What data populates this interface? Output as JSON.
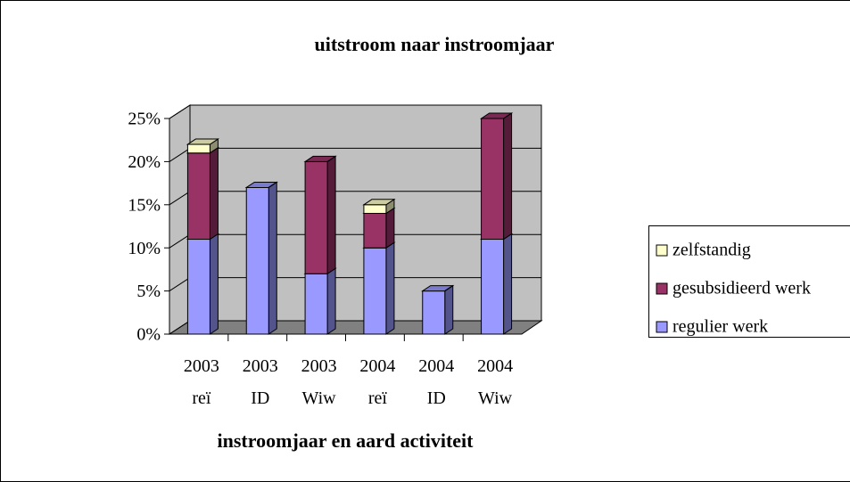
{
  "chart_data": {
    "type": "bar3d_stacked",
    "title": "uitstroom naar instroomjaar",
    "x_label": "instroomjaar en aard activiteit",
    "categories": [
      "2003 reï",
      "2003 ID",
      "2003 Wiw",
      "2004 reï",
      "2004 ID",
      "2004 Wiw"
    ],
    "series": [
      {
        "name": "regulier werk",
        "color": "#9999ff",
        "values": [
          11,
          17,
          7,
          10,
          5,
          11
        ]
      },
      {
        "name": "gesubsidieerd werk",
        "color": "#993366",
        "values": [
          10,
          0,
          13,
          4,
          0,
          14
        ]
      },
      {
        "name": "zelfstandig",
        "color": "#ffffcc",
        "values": [
          1,
          0,
          0,
          1,
          0,
          0
        ]
      }
    ],
    "ylim": [
      0,
      25
    ],
    "yticks": [
      {
        "value": 0,
        "label": "0%"
      },
      {
        "value": 5,
        "label": "5%"
      },
      {
        "value": 10,
        "label": "10%"
      },
      {
        "value": 15,
        "label": "15%"
      },
      {
        "value": 20,
        "label": "20%"
      },
      {
        "value": 25,
        "label": "25%"
      }
    ],
    "grid": true,
    "legend": "right"
  }
}
